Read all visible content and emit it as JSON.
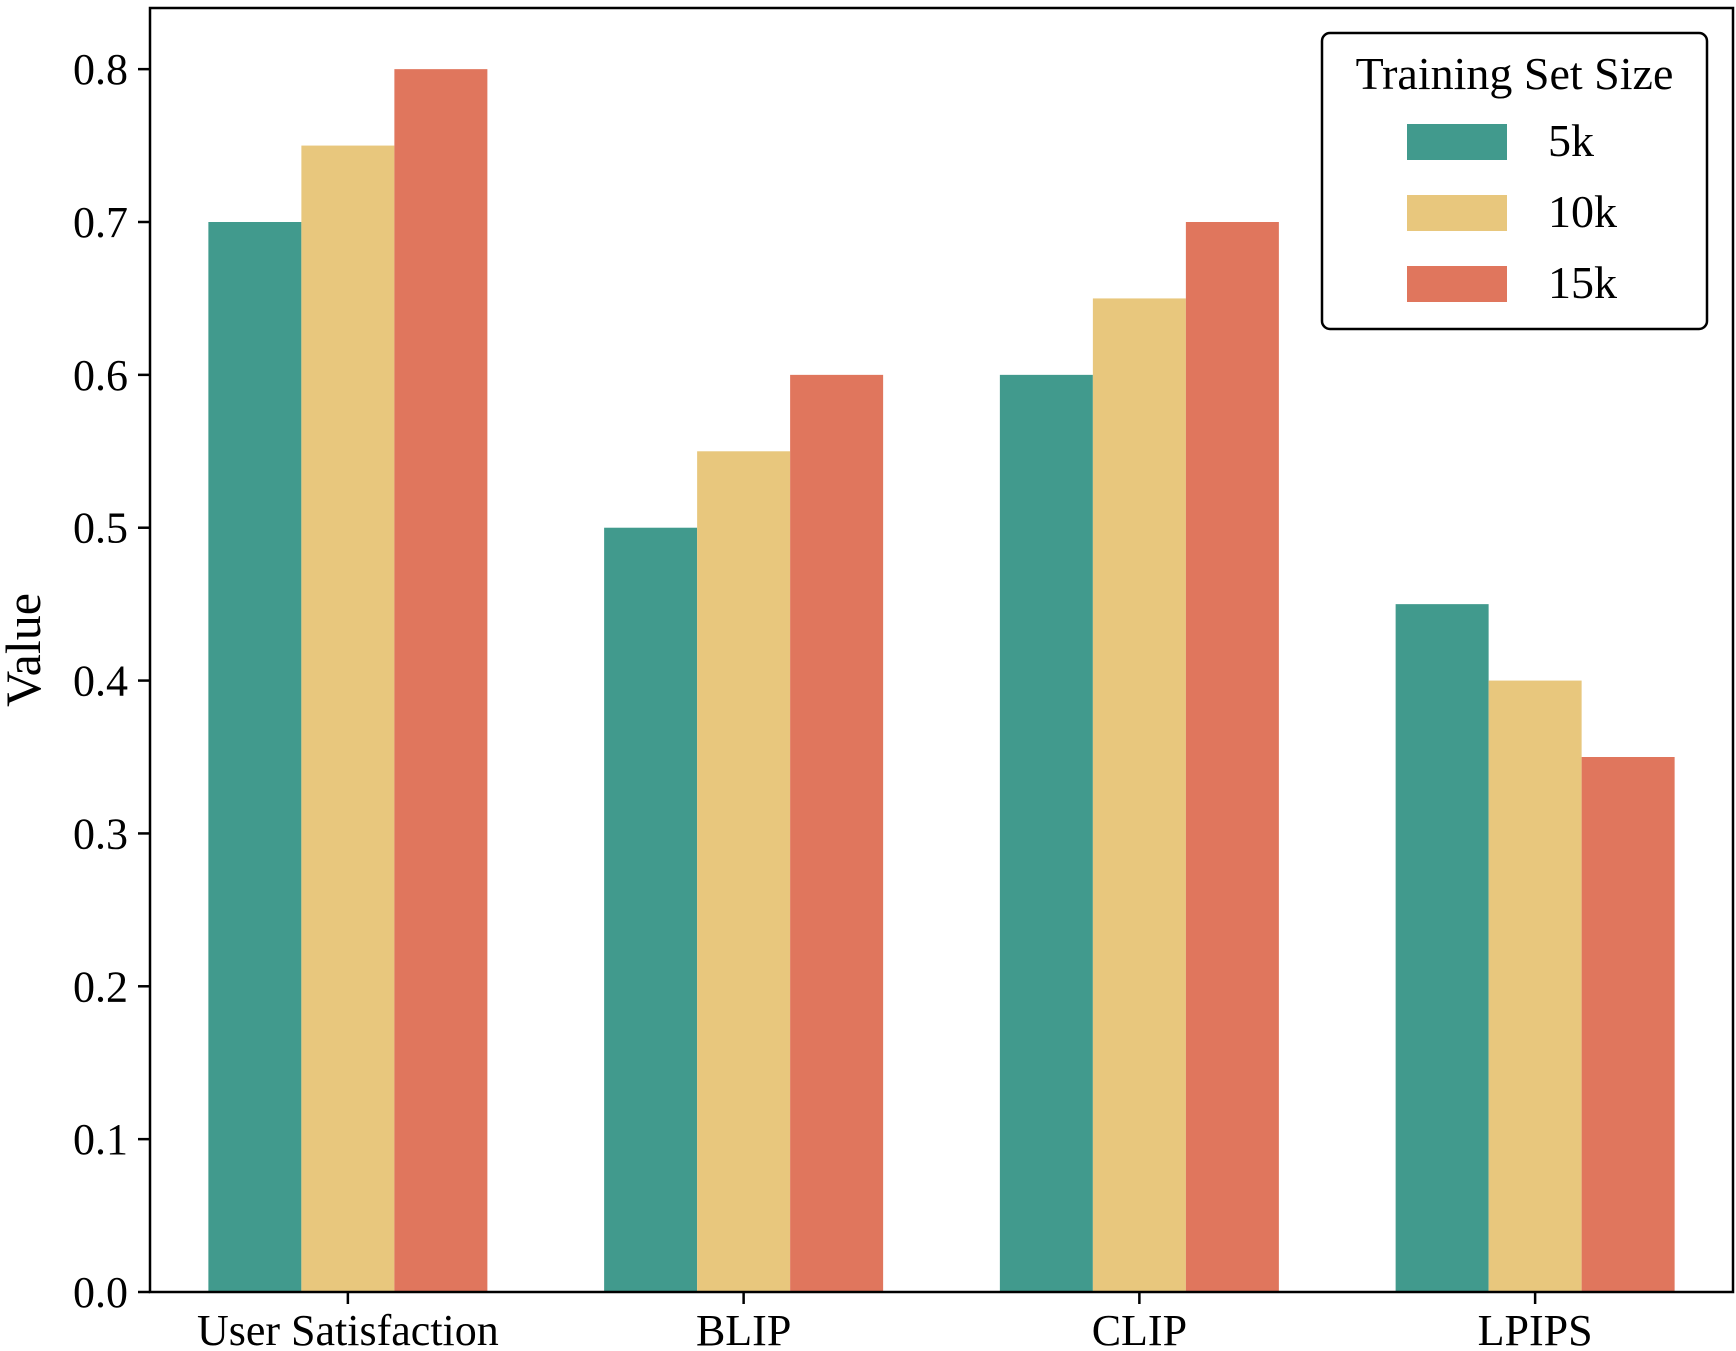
{
  "chart_data": {
    "type": "bar",
    "categories": [
      "User Satisfaction",
      "BLIP",
      "CLIP",
      "LPIPS"
    ],
    "series": [
      {
        "name": "5k",
        "values": [
          0.7,
          0.5,
          0.6,
          0.45
        ],
        "color": "#419a8d"
      },
      {
        "name": "10k",
        "values": [
          0.75,
          0.55,
          0.65,
          0.4
        ],
        "color": "#e8c77d"
      },
      {
        "name": "15k",
        "values": [
          0.8,
          0.6,
          0.7,
          0.35
        ],
        "color": "#e0765d"
      }
    ],
    "title": "",
    "xlabel": "",
    "ylabel": "Value",
    "ylim": [
      0,
      0.84
    ],
    "yticks": [
      "0.0",
      "0.1",
      "0.2",
      "0.3",
      "0.4",
      "0.5",
      "0.6",
      "0.7",
      "0.8"
    ],
    "grid": false,
    "legend": {
      "title": "Training Set Size",
      "placement": "top-right"
    }
  }
}
